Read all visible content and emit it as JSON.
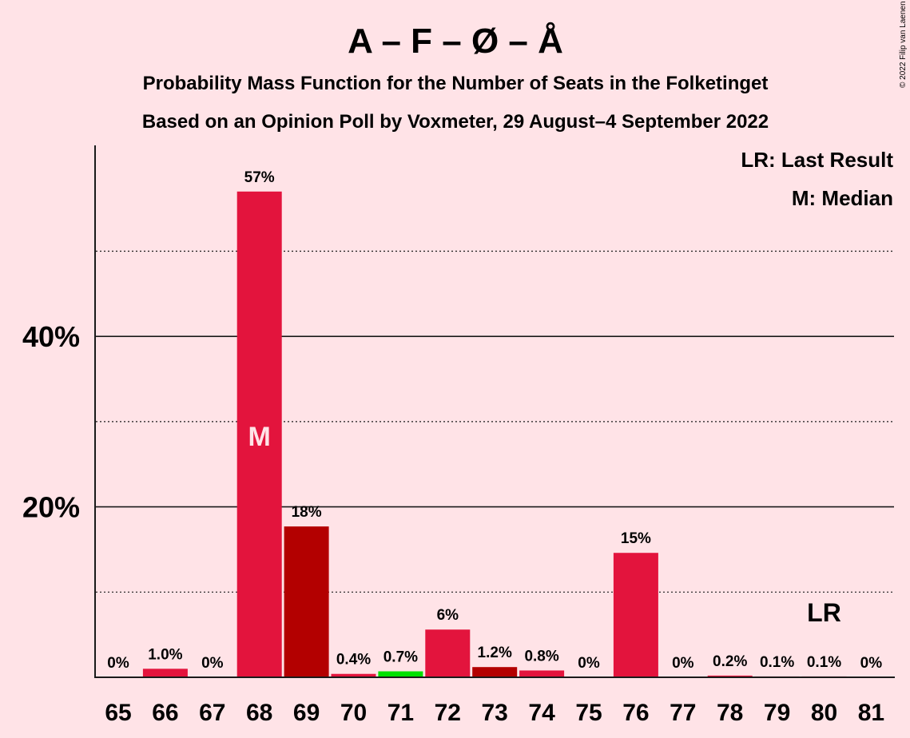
{
  "header": {
    "title": "A – F – Ø – Å",
    "subtitle1": "Probability Mass Function for the Number of Seats in the Folketinget",
    "subtitle2": "Based on an Opinion Poll by Voxmeter, 29 August–4 September 2022",
    "copyright": "© 2022 Filip van Laenen"
  },
  "legend": {
    "last_result": "LR: Last Result",
    "median": "M: Median"
  },
  "markers": {
    "median_label": "M",
    "median_seat": 68,
    "last_result_label": "LR",
    "last_result_seat": 80
  },
  "chart_data": {
    "type": "bar",
    "categories": [
      "65",
      "66",
      "67",
      "68",
      "69",
      "70",
      "71",
      "72",
      "73",
      "74",
      "75",
      "76",
      "77",
      "78",
      "79",
      "80",
      "81"
    ],
    "values": [
      0,
      1.0,
      0,
      57,
      17.7,
      0.4,
      0.7,
      5.6,
      1.2,
      0.8,
      0,
      14.6,
      0,
      0.2,
      0.1,
      0.1,
      0
    ],
    "data_labels": [
      "0%",
      "1.0%",
      "0%",
      "57%",
      "18%",
      "0.4%",
      "0.7%",
      "6%",
      "1.2%",
      "0.8%",
      "0%",
      "15%",
      "0%",
      "0.2%",
      "0.1%",
      "0.1%",
      "0%"
    ],
    "bar_colors": [
      "#E3143D",
      "#E3143D",
      "#E3143D",
      "#E3143D",
      "#B30000",
      "#E3143D",
      "#00E000",
      "#E3143D",
      "#B30000",
      "#E3143D",
      "#E3143D",
      "#E3143D",
      "#E3143D",
      "#E3143D",
      "#E3143D",
      "#E3143D",
      "#E3143D"
    ],
    "y_ticks": [
      20,
      40
    ],
    "y_tick_labels": [
      "20%",
      "40%"
    ],
    "y_minor_gridlines": [
      10,
      30,
      50
    ],
    "ylim": [
      0,
      62
    ],
    "grid": true,
    "legend_position": "top-right"
  }
}
